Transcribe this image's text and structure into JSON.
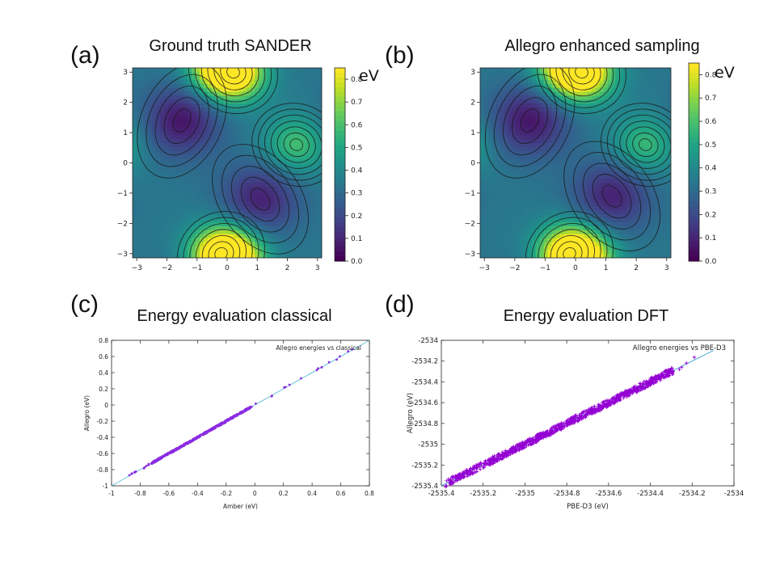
{
  "panels": {
    "a": {
      "label": "(a)",
      "title": "Ground truth SANDER"
    },
    "b": {
      "label": "(b)",
      "title": "Allegro enhanced sampling"
    },
    "c": {
      "label": "(c)",
      "title": "Energy evaluation classical"
    },
    "d": {
      "label": "(d)",
      "title": "Energy evaluation DFT"
    }
  },
  "chart_data": [
    {
      "type": "heatmap",
      "panel": "a",
      "title": "Ground truth SANDER",
      "colorbar_unit": "eV",
      "colormap": "viridis",
      "xlim": [
        -3.14,
        3.14
      ],
      "ylim": [
        -3.14,
        3.14
      ],
      "clim": [
        0.0,
        0.85
      ],
      "x_ticks": [
        "−3",
        "−2",
        "−1",
        "0",
        "1",
        "2",
        "3"
      ],
      "y_ticks": [
        "−3",
        "−2",
        "−1",
        "0",
        "1",
        "2",
        "3"
      ],
      "colorbar_ticks": [
        "0.0",
        "0.1",
        "0.2",
        "0.3",
        "0.4",
        "0.5",
        "0.6",
        "0.7",
        "0.8"
      ],
      "contours": true,
      "features": [
        {
          "kind": "minimum",
          "x": -1.5,
          "y": 1.4,
          "value": 0.05
        },
        {
          "kind": "minimum",
          "x": 1.1,
          "y": -1.2,
          "value": 0.08
        },
        {
          "kind": "maximum",
          "x": 0.2,
          "y": 3.0,
          "value": 0.85
        },
        {
          "kind": "maximum",
          "x": -0.2,
          "y": -3.0,
          "value": 0.85
        },
        {
          "kind": "maximum",
          "x": 2.3,
          "y": 0.6,
          "value": 0.6
        }
      ]
    },
    {
      "type": "heatmap",
      "panel": "b",
      "title": "Allegro enhanced sampling",
      "colorbar_unit": "eV",
      "colormap": "viridis",
      "xlim": [
        -3.14,
        3.14
      ],
      "ylim": [
        -3.14,
        3.14
      ],
      "clim": [
        0.0,
        0.85
      ],
      "x_ticks": [
        "−3",
        "−2",
        "−1",
        "0",
        "1",
        "2",
        "3"
      ],
      "y_ticks": [
        "−3",
        "−2",
        "−1",
        "0",
        "1",
        "2",
        "3"
      ],
      "colorbar_ticks": [
        "0.0",
        "0.1",
        "0.2",
        "0.3",
        "0.4",
        "0.5",
        "0.6",
        "0.7",
        "0.8"
      ],
      "contours": true,
      "features": [
        {
          "kind": "minimum",
          "x": -1.5,
          "y": 1.4,
          "value": 0.05
        },
        {
          "kind": "minimum",
          "x": 1.2,
          "y": -1.1,
          "value": 0.08
        },
        {
          "kind": "maximum",
          "x": 0.2,
          "y": 3.0,
          "value": 0.85
        },
        {
          "kind": "maximum",
          "x": -0.2,
          "y": -3.0,
          "value": 0.85
        },
        {
          "kind": "maximum",
          "x": 2.3,
          "y": 0.6,
          "value": 0.58
        }
      ]
    },
    {
      "type": "scatter",
      "panel": "c",
      "title": "Energy evaluation classical",
      "xlabel": "Amber (eV)",
      "ylabel": "Allegro (eV)",
      "xlim": [
        -1,
        0.8
      ],
      "ylim": [
        -1,
        0.8
      ],
      "x_ticks": [
        "-1",
        "-0.8",
        "-0.6",
        "-0.4",
        "-0.2",
        "0",
        "0.2",
        "0.4",
        "0.6",
        "0.8"
      ],
      "y_ticks": [
        "-1",
        "-0.8",
        "-0.6",
        "-0.4",
        "-0.2",
        "0",
        "0.2",
        "0.4",
        "0.6",
        "0.8"
      ],
      "legend": "Allegro energies vs classical",
      "legend_position": "top-right",
      "reference_line": {
        "x": [
          -1,
          0.8
        ],
        "y": [
          -1,
          0.8
        ]
      },
      "x_range_of_points": [
        -0.88,
        0.68
      ],
      "point_color": "#8a2be2"
    },
    {
      "type": "scatter",
      "panel": "d",
      "title": "Energy evaluation DFT",
      "xlabel": "PBE-D3 (eV)",
      "ylabel": "Allegro (eV)",
      "xlim": [
        -2535.4,
        -2534.0
      ],
      "ylim": [
        -2535.4,
        -2534.0
      ],
      "x_ticks": [
        "-2535.4",
        "-2535.2",
        "-2535",
        "-2534.8",
        "-2534.6",
        "-2534.4",
        "-2534.2",
        "-2534"
      ],
      "y_ticks": [
        "-2535.4",
        "-2535.2",
        "-2535",
        "-2534.8",
        "-2534.6",
        "-2534.4",
        "-2534.2",
        "-2534"
      ],
      "legend": "Allegro energies vs PBE-D3",
      "legend_position": "top-right",
      "reference_line": {
        "x": [
          -2535.4,
          -2534.1
        ],
        "y": [
          -2535.4,
          -2534.1
        ]
      },
      "x_range_of_points": [
        -2535.38,
        -2534.1
      ],
      "point_color": "#9400d3"
    }
  ]
}
